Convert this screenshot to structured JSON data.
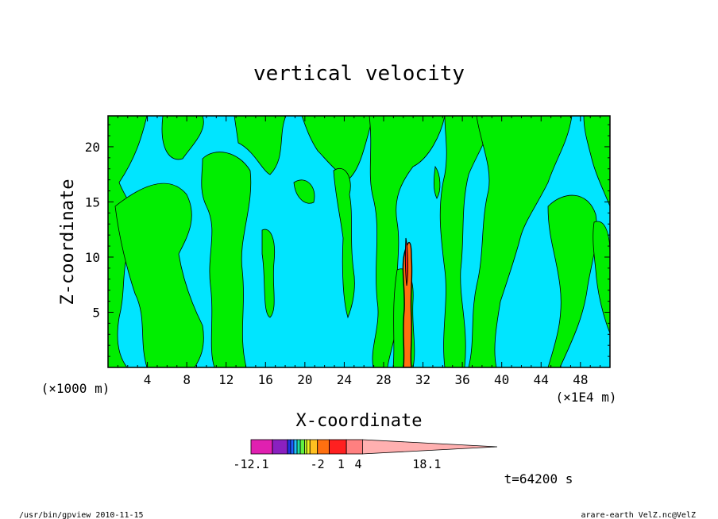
{
  "chart_data": {
    "type": "heatmap",
    "title": "vertical velocity",
    "xlabel": "X-coordinate",
    "ylabel": "Z-coordinate",
    "x_unit_left": "(×1000 m)",
    "x_unit_right": "(×1E4 m)",
    "xlim": [
      0,
      51
    ],
    "ylim": [
      0,
      22.8
    ],
    "x_ticks": [
      "4",
      "8",
      "12",
      "16",
      "20",
      "24",
      "28",
      "32",
      "36",
      "40",
      "44",
      "48"
    ],
    "y_ticks": [
      "5",
      "10",
      "15",
      "20"
    ],
    "time_label": "t=64200 s",
    "colorbar": {
      "tick_labels": [
        "-12.1",
        "-2",
        "1",
        "4",
        "18.1"
      ],
      "colors": [
        "#e020b0",
        "#8a20c0",
        "#2030e0",
        "#2060ff",
        "#20c0ff",
        "#20e0a0",
        "#60f040",
        "#c0ff30",
        "#f0f020",
        "#ffc020",
        "#ff7010",
        "#ff2020",
        "#ff8080",
        "#ffb0b0"
      ]
    },
    "background_colors": {
      "negative": "#00e5ff",
      "positive": "#00ee00",
      "strong_updraft": "#ff7010"
    }
  },
  "footer": {
    "left": "/usr/bin/gpview   2010-11-15",
    "right": "arare-earth_VelZ.nc@VelZ"
  }
}
